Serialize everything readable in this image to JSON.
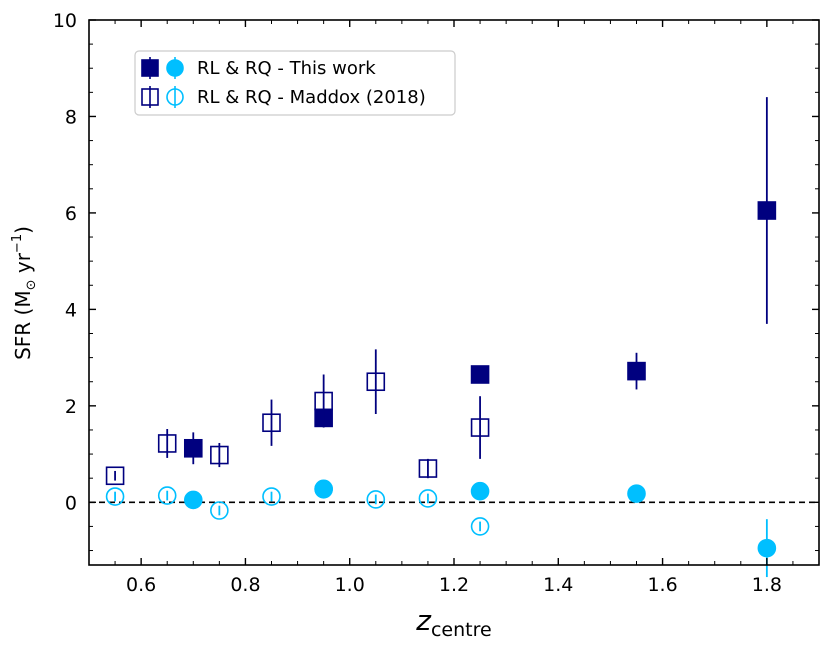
{
  "chart_data": {
    "type": "scatter",
    "title": "",
    "xlabel": {
      "main": "z",
      "sub": "centre"
    },
    "ylabel": {
      "prefix": "SFR (M",
      "sun": "⊙",
      "mid": " yr",
      "sup": "−1",
      "suffix": ")"
    },
    "xlim": [
      0.5,
      1.9
    ],
    "ylim": [
      -1.3,
      10
    ],
    "xticks": [
      "0.6",
      "0.8",
      "1.0",
      "1.2",
      "1.4",
      "1.6",
      "1.8"
    ],
    "xtick_values": [
      0.6,
      0.8,
      1.0,
      1.2,
      1.4,
      1.6,
      1.8
    ],
    "yticks": [
      "0",
      "2",
      "4",
      "6",
      "8",
      "10"
    ],
    "ytick_values": [
      0,
      2,
      4,
      6,
      8,
      10
    ],
    "reference_line": {
      "y": 0,
      "style": "dashed"
    },
    "colors": {
      "rl": "#00007f",
      "rq": "#00bfff"
    },
    "legend": {
      "position": "top-left",
      "entries": [
        {
          "label": "RL & RQ - This work",
          "filled": true
        },
        {
          "label": "RL & RQ - Maddox (2018)",
          "filled": false
        }
      ]
    },
    "series": [
      {
        "name": "RL - This work",
        "marker": "square",
        "filled": true,
        "color": "#00007f",
        "x": [
          0.7,
          0.95,
          1.25,
          1.55,
          1.8
        ],
        "y": [
          1.12,
          1.75,
          2.65,
          2.72,
          6.05
        ],
        "err": [
          0.33,
          0.15,
          0.12,
          0.38,
          2.35
        ]
      },
      {
        "name": "RQ - This work",
        "marker": "circle",
        "filled": true,
        "color": "#00bfff",
        "x": [
          0.7,
          0.95,
          1.25,
          1.55,
          1.8
        ],
        "y": [
          0.05,
          0.27,
          0.23,
          0.18,
          -0.95
        ],
        "err": [
          0.05,
          0.05,
          0.05,
          0.05,
          0.6
        ]
      },
      {
        "name": "RL - Maddox (2018)",
        "marker": "square",
        "filled": false,
        "color": "#00007f",
        "x": [
          0.55,
          0.65,
          0.75,
          0.85,
          0.95,
          1.05,
          1.15,
          1.25
        ],
        "y": [
          0.55,
          1.22,
          0.98,
          1.65,
          2.1,
          2.5,
          0.7,
          1.55
        ],
        "err": [
          0.1,
          0.3,
          0.25,
          0.48,
          0.55,
          0.67,
          0.2,
          0.65
        ]
      },
      {
        "name": "RQ - Maddox (2018)",
        "marker": "circle",
        "filled": false,
        "color": "#00bfff",
        "x": [
          0.55,
          0.65,
          0.75,
          0.85,
          0.95,
          1.05,
          1.15,
          1.25
        ],
        "y": [
          0.12,
          0.14,
          -0.17,
          0.12,
          0.28,
          0.06,
          0.08,
          -0.5
        ],
        "err": [
          0.1,
          0.1,
          0.1,
          0.1,
          0.1,
          0.1,
          0.1,
          0.1
        ]
      }
    ]
  }
}
